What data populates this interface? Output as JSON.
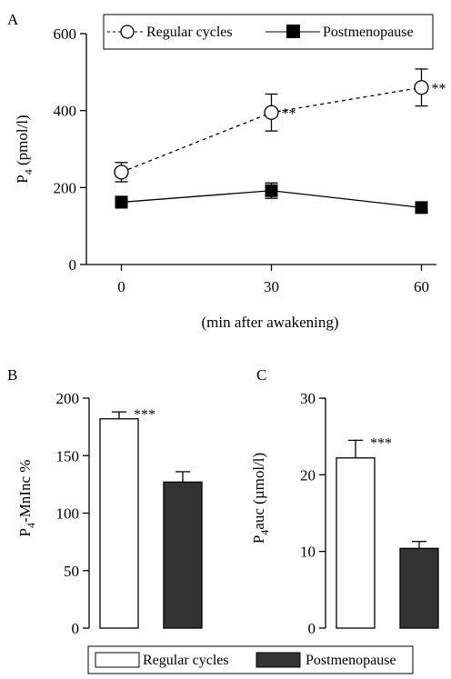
{
  "colors": {
    "regular_fill": "#ffffff",
    "postmeno_fill": "#333333",
    "line": "#000000"
  },
  "chart_data": [
    {
      "panel_label": "A",
      "type": "line",
      "xlabel": "(min after awakening)",
      "ylabel_main": "P",
      "ylabel_sub": "4",
      "ylabel_tail": " (pmol/l)",
      "x": [
        0,
        30,
        60
      ],
      "x_ticks": [
        "0",
        "30",
        "60"
      ],
      "xlim": [
        -7,
        63
      ],
      "y_ticks": [
        "0",
        "200",
        "400",
        "600"
      ],
      "ylim": [
        0,
        600
      ],
      "legend": {
        "position": "top",
        "entries": [
          "Regular cycles",
          "Postmenopause"
        ]
      },
      "series": [
        {
          "name": "Regular cycles",
          "marker": "open-circle",
          "line": "dashed",
          "values": [
            240,
            395,
            460
          ],
          "errors": [
            25,
            48,
            48
          ],
          "annotations": [
            "",
            "**",
            "**"
          ]
        },
        {
          "name": "Postmenopause",
          "marker": "filled-square",
          "line": "solid",
          "values": [
            162,
            192,
            148
          ],
          "errors": [
            15,
            20,
            10
          ],
          "annotations": [
            "",
            "",
            ""
          ]
        }
      ]
    },
    {
      "panel_label": "B",
      "type": "bar",
      "ylabel_main": "P",
      "ylabel_sub": "4",
      "ylabel_tail": "-MnInc %",
      "categories": [
        "Regular cycles",
        "Postmenopause"
      ],
      "values": [
        182,
        127
      ],
      "errors": [
        6,
        9
      ],
      "annotations": [
        "***",
        ""
      ],
      "y_ticks": [
        "0",
        "50",
        "100",
        "150",
        "200"
      ],
      "ylim": [
        0,
        200
      ]
    },
    {
      "panel_label": "C",
      "type": "bar",
      "ylabel_main": "P",
      "ylabel_sub": "4",
      "ylabel_tail": "auc (µmol/l)",
      "categories": [
        "Regular cycles",
        "Postmenopause"
      ],
      "values": [
        22.2,
        10.4
      ],
      "errors": [
        2.3,
        0.9
      ],
      "annotations": [
        "***",
        ""
      ],
      "y_ticks": [
        "0",
        "10",
        "20",
        "30"
      ],
      "ylim": [
        0,
        30
      ]
    }
  ],
  "bottom_legend": {
    "entries": [
      "Regular cycles",
      "Postmenopause"
    ]
  }
}
